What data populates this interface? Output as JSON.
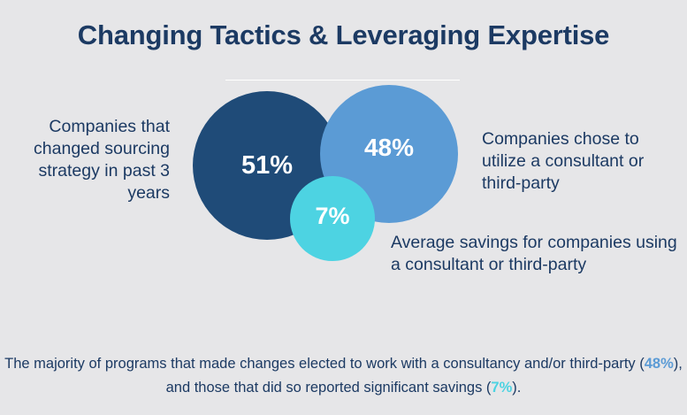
{
  "title": "Changing Tactics & Leveraging Expertise",
  "stats": {
    "sourcing": {
      "value": "51%",
      "label": "Companies that changed sourcing strategy in past 3 years",
      "color": "#1f4b78"
    },
    "consultant": {
      "value": "48%",
      "label": "Companies chose to utilize a consultant or third-party",
      "color": "#5b9bd5"
    },
    "savings": {
      "value": "7%",
      "label": "Average savings for companies using a consultant or third-party",
      "color": "#4dd3e2"
    }
  },
  "footer": {
    "part1": "The majority of programs that made changes elected to work with a consultancy and/or third-party (",
    "highlight1": "48%",
    "part2": "), and those that did so reported significant savings (",
    "highlight2": "7%",
    "part3": ")."
  },
  "colors": {
    "background": "#e6e6e8",
    "text": "#1c3a63"
  }
}
